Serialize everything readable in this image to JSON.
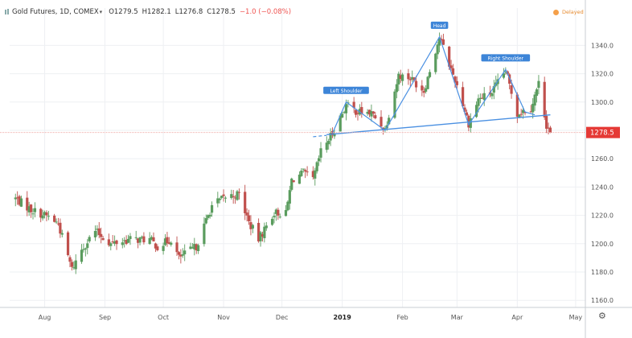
{
  "header": {
    "symbol_icon": "bars-icon",
    "title": "Gold Futures, 1D, COMEX",
    "dropdown_icon": "chevron-down-icon",
    "open": "O1279.5",
    "high": "H1282.1",
    "low": "L1276.8",
    "close": "C1278.5",
    "change": "−1.0 (−0.08%)",
    "change_color": "#ef5350",
    "delayed_label": "Delayed",
    "delayed_color": "#f5a04a"
  },
  "price_tag": {
    "value": "1278.5",
    "color": "#e53935"
  },
  "settings_icon": "gear-icon",
  "colors": {
    "up": "#5a9c5e",
    "down": "#c0504d",
    "neckline": "#4a90e2",
    "label_bg": "#3d85d8"
  },
  "chart_data": {
    "type": "candlestick",
    "x_axis_labels": [
      "Aug",
      "Sep",
      "Oct",
      "Nov",
      "Dec",
      "2019",
      "Feb",
      "Mar",
      "Apr",
      "May"
    ],
    "y_axis_labels": [
      "1160.0",
      "1180.0",
      "1200.0",
      "1220.0",
      "1240.0",
      "1260.0",
      "1280.0",
      "1300.0",
      "1320.0",
      "1340.0"
    ],
    "ylim": [
      1155,
      1355
    ],
    "grid": true,
    "pattern": {
      "name": "head-and-shoulders",
      "annotations": [
        {
          "label": "Left Shoulder",
          "date": "2019-01-03",
          "price": 1300
        },
        {
          "label": "Head",
          "date": "2019-02-20",
          "price": 1346
        },
        {
          "label": "Right Shoulder",
          "date": "2019-03-26",
          "price": 1323
        }
      ],
      "outline": [
        [
          "2018-12-27",
          1278
        ],
        [
          "2019-01-03",
          1300
        ],
        [
          "2019-01-23",
          1280
        ],
        [
          "2019-02-20",
          1346
        ],
        [
          "2019-03-07",
          1284
        ],
        [
          "2019-03-26",
          1323
        ],
        [
          "2019-04-05",
          1293
        ],
        [
          "2019-04-10",
          1291
        ]
      ],
      "neckline": [
        [
          "2018-12-24",
          1277
        ],
        [
          "2019-04-18",
          1291
        ]
      ]
    },
    "ohlc_anchors": [
      [
        "2018-07-17",
        1232
      ],
      [
        "2018-07-25",
        1224
      ],
      [
        "2018-08-03",
        1219
      ],
      [
        "2018-08-08",
        1214
      ],
      [
        "2018-08-15",
        1182
      ],
      [
        "2018-08-20",
        1196
      ],
      [
        "2018-08-27",
        1209
      ],
      [
        "2018-09-04",
        1200
      ],
      [
        "2018-09-14",
        1203
      ],
      [
        "2018-09-24",
        1203
      ],
      [
        "2018-09-28",
        1198
      ],
      [
        "2018-10-05",
        1203
      ],
      [
        "2018-10-09",
        1190
      ],
      [
        "2018-10-18",
        1198
      ],
      [
        "2018-10-26",
        1227
      ],
      [
        "2018-11-02",
        1233
      ],
      [
        "2018-11-09",
        1235
      ],
      [
        "2018-11-14",
        1215
      ],
      [
        "2018-11-19",
        1203
      ],
      [
        "2018-11-27",
        1222
      ],
      [
        "2018-12-03",
        1221
      ],
      [
        "2018-12-06",
        1245
      ],
      [
        "2018-12-12",
        1250
      ],
      [
        "2018-12-17",
        1245
      ],
      [
        "2018-12-21",
        1265
      ],
      [
        "2018-12-27",
        1278
      ],
      [
        "2019-01-03",
        1298
      ],
      [
        "2019-01-09",
        1293
      ],
      [
        "2019-01-16",
        1292
      ],
      [
        "2019-01-23",
        1281
      ],
      [
        "2019-01-30",
        1319
      ],
      [
        "2019-02-05",
        1317
      ],
      [
        "2019-02-12",
        1308
      ],
      [
        "2019-02-20",
        1346
      ],
      [
        "2019-02-26",
        1323
      ],
      [
        "2019-03-01",
        1312
      ],
      [
        "2019-03-07",
        1285
      ],
      [
        "2019-03-12",
        1302
      ],
      [
        "2019-03-19",
        1307
      ],
      [
        "2019-03-26",
        1322
      ],
      [
        "2019-04-01",
        1292
      ],
      [
        "2019-04-08",
        1296
      ],
      [
        "2019-04-12",
        1313
      ],
      [
        "2019-04-16",
        1284
      ],
      [
        "2019-04-18",
        1278.5
      ]
    ]
  }
}
